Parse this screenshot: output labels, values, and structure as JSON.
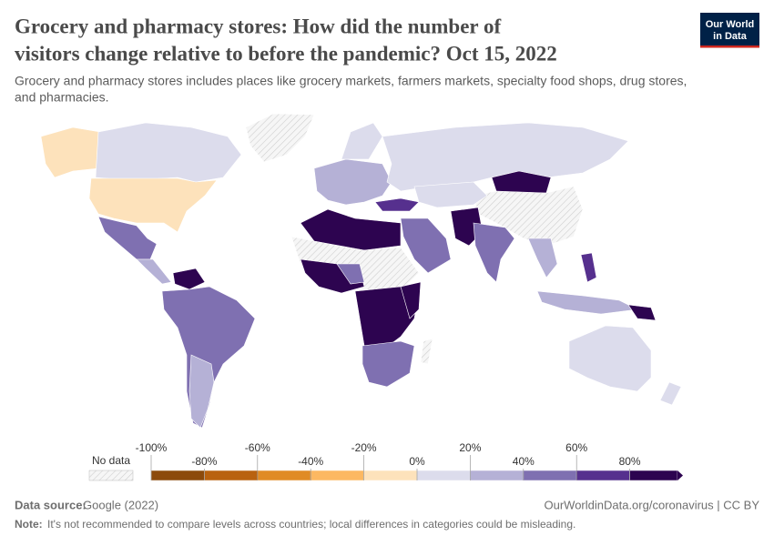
{
  "header": {
    "title_lines": [
      "Grocery and pharmacy stores: How did the number of",
      "visitors change relative to before the pandemic? Oct 15, 2022"
    ],
    "subtitle_lines": [
      "Grocery and pharmacy stores includes places like grocery markets, farmers markets, specialty food shops, drug stores,",
      "and pharmacies."
    ],
    "logo_lines": [
      "Our World",
      "in Data"
    ]
  },
  "legend": {
    "no_data": "No data",
    "ticks": [
      {
        "value": -100,
        "label": "-100%"
      },
      {
        "value": -80,
        "label": "-80%"
      },
      {
        "value": -60,
        "label": "-60%"
      },
      {
        "value": -40,
        "label": "-40%"
      },
      {
        "value": -20,
        "label": "-20%"
      },
      {
        "value": 0,
        "label": "0%"
      },
      {
        "value": 20,
        "label": "20%"
      },
      {
        "value": 40,
        "label": "40%"
      },
      {
        "value": 60,
        "label": "60%"
      },
      {
        "value": 80,
        "label": "80%"
      }
    ],
    "colors": [
      "#8c4a0b",
      "#b9620f",
      "#e08b25",
      "#fcb862",
      "#fde2bb",
      "#dcdcec",
      "#b5b1d6",
      "#7f70b1",
      "#56308e",
      "#2d0450"
    ]
  },
  "footer": {
    "source_label": "Data source:",
    "source": "Google (2022)",
    "url": "OurWorldinData.org/coronavirus | CC BY",
    "note_label": "Note:",
    "note": "It's not recommended to compare levels across countries; local differences in categories could be misleading."
  }
}
